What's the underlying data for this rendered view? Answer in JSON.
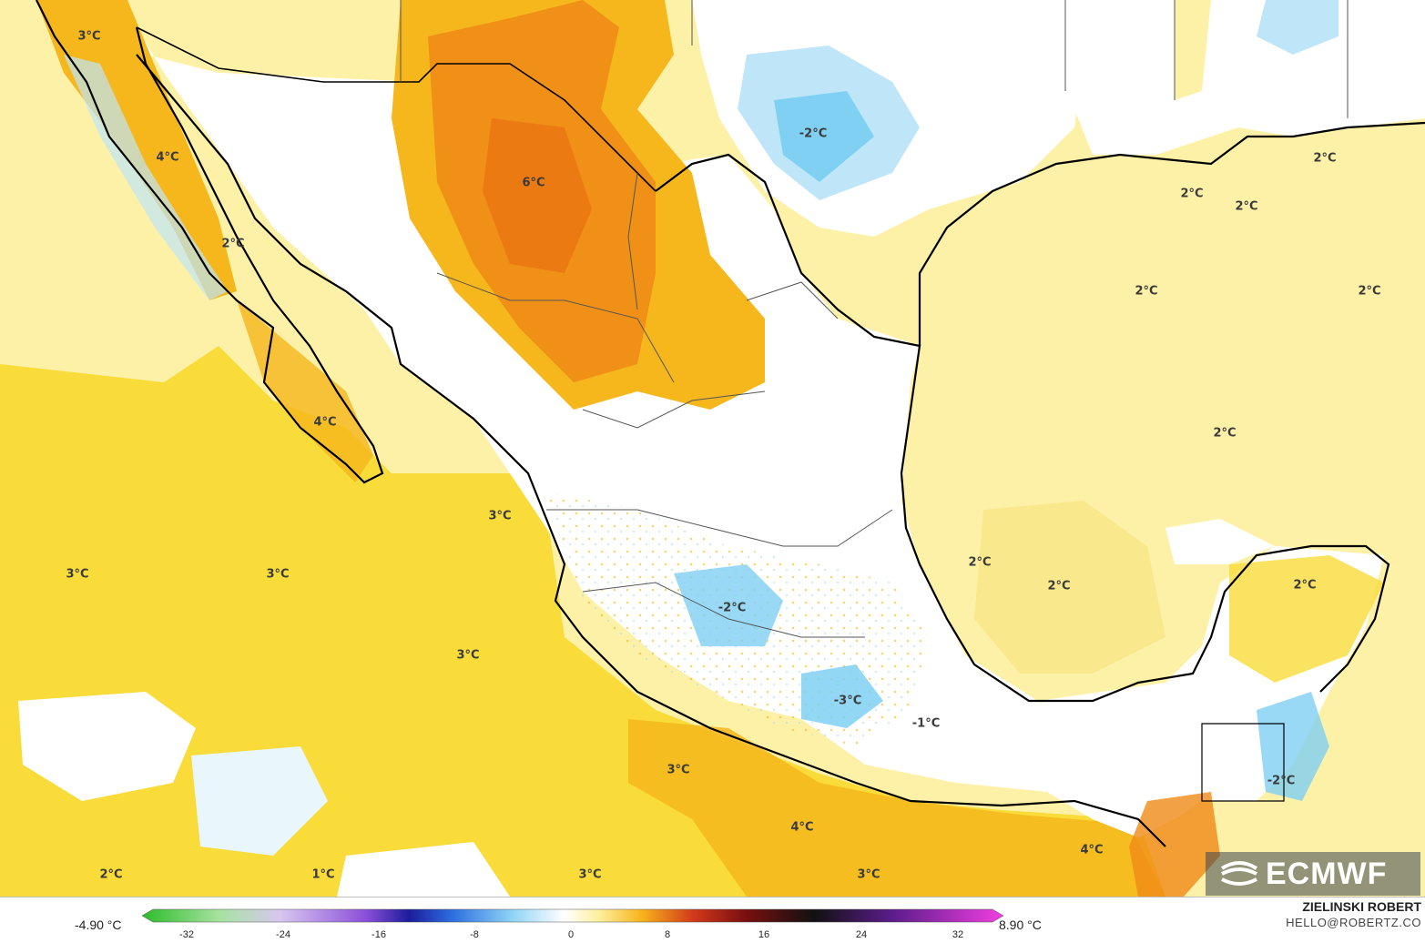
{
  "map": {
    "labels": [
      {
        "text": "3°C"
      },
      {
        "text": "4°C"
      },
      {
        "text": "2°C"
      },
      {
        "text": "6°C"
      },
      {
        "text": "-2°C"
      },
      {
        "text": "2°C"
      },
      {
        "text": "2°C"
      },
      {
        "text": "2°C"
      },
      {
        "text": "2°C"
      },
      {
        "text": "2°C"
      },
      {
        "text": "4°C"
      },
      {
        "text": "2°C"
      },
      {
        "text": "3°C"
      },
      {
        "text": "3°C"
      },
      {
        "text": "3°C"
      },
      {
        "text": "2°C"
      },
      {
        "text": "2°C"
      },
      {
        "text": "-2°C"
      },
      {
        "text": "2°C"
      },
      {
        "text": "3°C"
      },
      {
        "text": "-3°C"
      },
      {
        "text": "-1°C"
      },
      {
        "text": "3°C"
      },
      {
        "text": "-2°C"
      },
      {
        "text": "4°C"
      },
      {
        "text": "4°C"
      },
      {
        "text": "2°C"
      },
      {
        "text": "1°C"
      },
      {
        "text": "3°C"
      },
      {
        "text": "3°C"
      }
    ],
    "colors": {
      "ocean_light": "#fdf1a8",
      "warm_yellow": "#f9dc3a",
      "amber": "#f5b71c",
      "orange": "#f08a16",
      "light_blue": "#bfe6f8",
      "blue": "#7fd0f2",
      "coast": "#000000",
      "borders": "#555555"
    }
  },
  "legend": {
    "min": "-4.90 °C",
    "max": "8.90 °C",
    "ticks": [
      "-32",
      "-24",
      "-16",
      "-8",
      "0",
      "8",
      "16",
      "24",
      "32"
    ]
  },
  "credits": {
    "author": "ZIELINSKI ROBERT",
    "email": "HELLO@ROBERTZ.CO",
    "logo": "ECMWF"
  }
}
